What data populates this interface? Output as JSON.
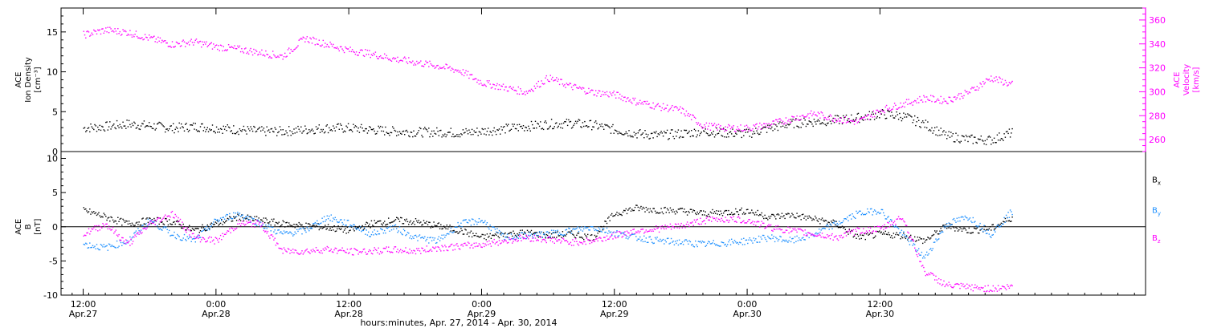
{
  "chart_data": [
    {
      "type": "scatter",
      "panel": "top",
      "ylabel_left": [
        "ACE",
        "Ion Density",
        "[cm⁻³]"
      ],
      "ylabel_right": [
        "ACE",
        "Velocity",
        "[km/s]"
      ],
      "left_ylim": [
        0,
        18
      ],
      "left_ticks": [
        0,
        5,
        10,
        15
      ],
      "right_ylim": [
        250,
        370
      ],
      "right_ticks": [
        260,
        280,
        300,
        320,
        340,
        360
      ],
      "colors": {
        "density": "#000000",
        "velocity": "#ff00ff"
      },
      "series": [
        {
          "key": "density",
          "axis": "left",
          "x": [
            0,
            2,
            4,
            6,
            8,
            10,
            12,
            14,
            16,
            18,
            20,
            22,
            24,
            26,
            28,
            30,
            32,
            34,
            36,
            38,
            40,
            42,
            44,
            46,
            48,
            50,
            52,
            54,
            56,
            58,
            60,
            62,
            64,
            66,
            68,
            70,
            72,
            74,
            76,
            78,
            80,
            82,
            84
          ],
          "y": [
            3.0,
            3.2,
            3.5,
            3.3,
            3.0,
            3.2,
            3.0,
            2.8,
            2.6,
            2.6,
            2.8,
            3.0,
            3.0,
            2.8,
            2.6,
            2.5,
            2.5,
            2.4,
            2.6,
            2.9,
            3.2,
            3.5,
            3.6,
            3.4,
            2.8,
            2.3,
            2.1,
            2.3,
            2.6,
            2.4,
            2.3,
            3.0,
            3.6,
            3.8,
            4.0,
            4.3,
            4.8,
            4.5,
            3.5,
            2.0,
            1.6,
            1.5,
            2.5
          ]
        },
        {
          "key": "velocity",
          "axis": "right",
          "x": [
            0,
            2,
            4,
            6,
            8,
            10,
            12,
            14,
            16,
            18,
            20,
            22,
            24,
            26,
            28,
            30,
            32,
            34,
            36,
            38,
            40,
            42,
            44,
            46,
            48,
            50,
            52,
            54,
            56,
            58,
            60,
            62,
            64,
            66,
            68,
            70,
            72,
            74,
            76,
            78,
            80,
            82,
            84
          ],
          "y": [
            348,
            352,
            350,
            345,
            340,
            342,
            338,
            336,
            333,
            330,
            345,
            340,
            335,
            332,
            328,
            325,
            322,
            318,
            308,
            304,
            300,
            312,
            305,
            300,
            298,
            292,
            288,
            285,
            272,
            270,
            270,
            273,
            278,
            282,
            278,
            275,
            285,
            290,
            295,
            293,
            300,
            312,
            306
          ]
        }
      ]
    },
    {
      "type": "scatter",
      "panel": "bottom",
      "ylabel_left": [
        "ACE",
        "B",
        "[nT]"
      ],
      "ylim": [
        -10,
        11
      ],
      "ticks": [
        -10,
        -5,
        0,
        5,
        10
      ],
      "legend": {
        "placement": "right",
        "entries": [
          {
            "key": "bx",
            "label": "B",
            "sub": "x",
            "color": "#000000"
          },
          {
            "key": "by",
            "label": "B",
            "sub": "y",
            "color": "#1e90ff"
          },
          {
            "key": "bz",
            "label": "B",
            "sub": "z",
            "color": "#ff00ff"
          }
        ]
      },
      "series": [
        {
          "key": "bx",
          "x": [
            0,
            2,
            4,
            6,
            8,
            10,
            12,
            14,
            16,
            18,
            20,
            22,
            24,
            26,
            28,
            30,
            32,
            34,
            36,
            38,
            40,
            42,
            44,
            46,
            48,
            50,
            52,
            54,
            56,
            58,
            60,
            62,
            64,
            66,
            68,
            70,
            72,
            74,
            76,
            78,
            80,
            82,
            84
          ],
          "y": [
            2.5,
            1.5,
            0.5,
            1.0,
            0.8,
            -0.5,
            0.5,
            1.5,
            1.0,
            0.5,
            0.2,
            0.0,
            -0.5,
            0.5,
            1.0,
            0.8,
            0.2,
            -0.5,
            -1.5,
            -1.0,
            -0.8,
            -1.2,
            -1.0,
            -1.5,
            2.0,
            2.8,
            2.5,
            2.4,
            2.0,
            2.2,
            2.4,
            1.5,
            1.8,
            1.2,
            0.5,
            -1.5,
            -1.0,
            -1.2,
            -2.0,
            0.2,
            -0.5,
            -0.2,
            1.5
          ]
        },
        {
          "key": "by",
          "x": [
            0,
            2,
            4,
            6,
            8,
            10,
            12,
            14,
            16,
            18,
            20,
            22,
            24,
            26,
            28,
            30,
            32,
            34,
            36,
            38,
            40,
            42,
            44,
            46,
            48,
            50,
            52,
            54,
            56,
            58,
            60,
            62,
            64,
            66,
            68,
            70,
            72,
            74,
            76,
            78,
            80,
            82,
            84
          ],
          "y": [
            -2.5,
            -3.0,
            -2.0,
            1.0,
            -1.0,
            -2.0,
            1.0,
            2.0,
            0.5,
            -1.0,
            -0.5,
            1.5,
            0.5,
            -1.0,
            0.0,
            -1.5,
            -2.0,
            0.5,
            1.0,
            -1.5,
            -1.2,
            -1.0,
            -0.5,
            0.0,
            -0.8,
            -1.5,
            -2.0,
            -2.2,
            -2.5,
            -2.3,
            -2.0,
            -1.5,
            -2.0,
            -1.0,
            0.5,
            2.0,
            2.5,
            -1.0,
            -4.5,
            0.5,
            1.5,
            -1.0,
            2.5
          ]
        },
        {
          "key": "bz",
          "x": [
            0,
            2,
            4,
            6,
            8,
            10,
            12,
            14,
            16,
            18,
            20,
            22,
            24,
            26,
            28,
            30,
            32,
            34,
            36,
            38,
            40,
            42,
            44,
            46,
            48,
            50,
            52,
            54,
            56,
            58,
            60,
            62,
            64,
            66,
            68,
            70,
            72,
            74,
            76,
            78,
            80,
            82,
            84
          ],
          "y": [
            -1.0,
            0.5,
            -2.5,
            0.5,
            2.0,
            -1.5,
            -2.0,
            0.5,
            0.5,
            -3.5,
            -3.5,
            -3.2,
            -3.6,
            -3.5,
            -3.3,
            -3.5,
            -3.0,
            -2.8,
            -2.5,
            -2.0,
            -1.5,
            -1.8,
            -2.2,
            -2.0,
            -1.2,
            -0.5,
            -0.2,
            0.2,
            1.0,
            1.2,
            1.0,
            0.0,
            -0.5,
            -1.0,
            -1.5,
            -0.5,
            -0.3,
            1.5,
            -6.5,
            -8.5,
            -8.8,
            -9.0,
            -8.7
          ]
        }
      ]
    }
  ],
  "xaxis": {
    "range_hours": [
      -2,
      96
    ],
    "ticks": [
      {
        "hour": 0,
        "time": "12:00",
        "date": "Apr.27"
      },
      {
        "hour": 12,
        "time": "0:00",
        "date": "Apr.28"
      },
      {
        "hour": 24,
        "time": "12:00",
        "date": "Apr.28"
      },
      {
        "hour": 36,
        "time": "0:00",
        "date": "Apr.29"
      },
      {
        "hour": 48,
        "time": "12:00",
        "date": "Apr.29"
      },
      {
        "hour": 60,
        "time": "0:00",
        "date": "Apr.30"
      },
      {
        "hour": 72,
        "time": "12:00",
        "date": "Apr.30"
      }
    ],
    "xlabel": "hours:minutes, Apr. 27, 2014 - Apr. 30, 2014"
  }
}
